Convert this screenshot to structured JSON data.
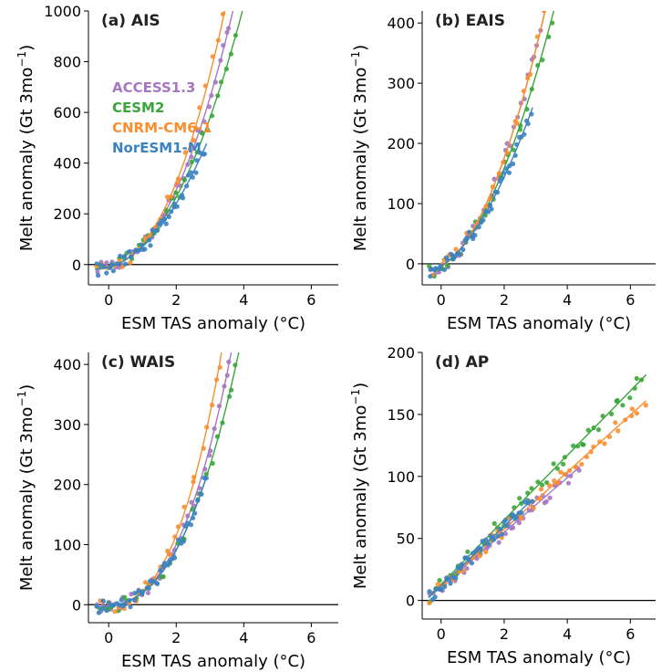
{
  "colors": {
    "ACCESS1.3": "#a577c2",
    "CESM2": "#3aa63a",
    "CNRM-CM6-1": "#f98e2f",
    "NorESM1-M": "#3a82c0"
  },
  "legend": [
    "ACCESS1.3",
    "CESM2",
    "CNRM-CM6-1",
    "NorESM1-M"
  ],
  "chart_data": [
    {
      "type": "scatter",
      "panel_label": "(a) AIS",
      "xlabel": "ESM TAS anomaly (°C)",
      "ylabel": "Melt anomaly (Gt 3mo",
      "ylabel_sup": "−1",
      "ylabel_end": ")",
      "xlim": [
        -0.6,
        6.8
      ],
      "ylim": [
        -80,
        1000
      ],
      "xticks": [
        0,
        2,
        4,
        6
      ],
      "yticks": [
        0,
        200,
        400,
        600,
        800,
        1000
      ],
      "hline": 0,
      "legend_position": "upper-left",
      "series": [
        {
          "name": "ACCESS1.3",
          "coef": [
            38,
            19
          ],
          "exp": 2.3,
          "xmax": 4.4,
          "x": [
            -0.3,
            0.2,
            0.8,
            1.4,
            2.0,
            2.6,
            3.2,
            3.8,
            4.2,
            4.4
          ]
        },
        {
          "name": "CESM2",
          "coef": [
            38,
            19
          ],
          "exp": 2.2,
          "xmax": 6.5,
          "x": [
            -0.3,
            0.5,
            1.2,
            2.0,
            2.8,
            3.5,
            4.2,
            5.0,
            5.8,
            6.5
          ]
        },
        {
          "name": "CNRM-CM6-1",
          "coef": [
            38,
            19
          ],
          "exp": 2.4,
          "xmax": 6.5,
          "x": [
            -0.3,
            0.5,
            1.2,
            2.0,
            2.8,
            3.5,
            4.2,
            5.0,
            5.8,
            6.5
          ]
        },
        {
          "name": "NorESM1-M",
          "coef": [
            38,
            19
          ],
          "exp": 2.1,
          "xmax": 2.9,
          "x": [
            -0.3,
            0.2,
            0.7,
            1.2,
            1.7,
            2.2,
            2.6,
            2.9
          ]
        }
      ]
    },
    {
      "type": "scatter",
      "panel_label": "(b) EAIS",
      "xlabel": "ESM TAS anomaly (°C)",
      "ylabel": "Melt anomaly (Gt 3mo",
      "ylabel_sup": "−1",
      "ylabel_end": ")",
      "xlim": [
        -0.6,
        6.8
      ],
      "ylim": [
        -35,
        420
      ],
      "xticks": [
        0,
        2,
        4,
        6
      ],
      "yticks": [
        0,
        100,
        200,
        300,
        400
      ],
      "hline": 0,
      "series": [
        {
          "name": "ACCESS1.3",
          "coef": [
            30,
            12
          ],
          "exp": 2.0,
          "xmax": 4.4,
          "x": [
            -0.3,
            0.2,
            0.8,
            1.4,
            2.0,
            2.6,
            3.2,
            3.8,
            4.4
          ]
        },
        {
          "name": "CESM2",
          "coef": [
            30,
            12
          ],
          "exp": 1.9,
          "xmax": 6.5,
          "x": [
            -0.3,
            0.5,
            1.2,
            2.0,
            2.8,
            3.5,
            4.2,
            5.0,
            5.8,
            6.5
          ]
        },
        {
          "name": "CNRM-CM6-1",
          "coef": [
            30,
            12
          ],
          "exp": 2.0,
          "xmax": 6.5,
          "x": [
            -0.3,
            0.5,
            1.2,
            2.0,
            2.8,
            3.5,
            4.2,
            5.0,
            5.8,
            6.5
          ]
        },
        {
          "name": "NorESM1-M",
          "coef": [
            30,
            12
          ],
          "exp": 1.8,
          "xmax": 2.9,
          "x": [
            -0.3,
            0.2,
            0.7,
            1.2,
            1.7,
            2.2,
            2.6,
            2.9
          ]
        }
      ]
    },
    {
      "type": "scatter",
      "panel_label": "(c) WAIS",
      "xlabel": "ESM TAS anomaly (°C)",
      "ylabel": "Melt anomaly (Gt 3mo",
      "ylabel_sup": "−1",
      "ylabel_end": ")",
      "xlim": [
        -0.6,
        6.8
      ],
      "ylim": [
        -30,
        420
      ],
      "xticks": [
        0,
        2,
        4,
        6
      ],
      "yticks": [
        0,
        100,
        200,
        300,
        400
      ],
      "hline": 0,
      "series": [
        {
          "name": "ACCESS1.3",
          "coef": [
            8,
            4
          ],
          "exp": 2.8,
          "xmax": 4.4,
          "x": [
            -0.3,
            0.2,
            0.8,
            1.4,
            2.0,
            2.6,
            3.2,
            3.8,
            4.4
          ]
        },
        {
          "name": "CESM2",
          "coef": [
            8,
            4
          ],
          "exp": 2.7,
          "xmax": 6.5,
          "x": [
            -0.3,
            0.5,
            1.2,
            2.0,
            2.8,
            3.5,
            4.2,
            5.0,
            5.8,
            6.5
          ]
        },
        {
          "name": "CNRM-CM6-1",
          "coef": [
            8,
            4
          ],
          "exp": 2.95,
          "xmax": 6.5,
          "x": [
            -0.3,
            0.5,
            1.2,
            2.0,
            2.8,
            3.5,
            4.2,
            5.0,
            5.8,
            6.5
          ]
        },
        {
          "name": "NorESM1-M",
          "coef": [
            8,
            4
          ],
          "exp": 2.7,
          "xmax": 2.9,
          "x": [
            -0.3,
            0.2,
            0.7,
            1.2,
            1.7,
            2.2,
            2.6,
            2.9
          ]
        }
      ]
    },
    {
      "type": "scatter",
      "panel_label": "(d) AP",
      "xlabel": "ESM TAS anomaly (°C)",
      "ylabel": "Melt anomaly (Gt 3mo",
      "ylabel_sup": "−1",
      "ylabel_end": ")",
      "xlim": [
        -0.6,
        6.8
      ],
      "ylim": [
        -15,
        200
      ],
      "xticks": [
        0,
        2,
        4,
        6
      ],
      "yticks": [
        0,
        50,
        100,
        150,
        200
      ],
      "hline": 0,
      "series": [
        {
          "name": "ACCESS1.3",
          "coef": [
            22,
            0
          ],
          "exp": 1.0,
          "xmax": 4.4,
          "x": [
            -0.3,
            0.2,
            0.8,
            1.4,
            2.0,
            2.6,
            3.2,
            3.8,
            4.4
          ]
        },
        {
          "name": "CESM2",
          "coef": [
            26,
            0
          ],
          "exp": 1.0,
          "xmax": 6.5,
          "x": [
            -0.3,
            0.5,
            1.2,
            2.0,
            2.8,
            3.5,
            4.2,
            5.0,
            5.8,
            6.5
          ]
        },
        {
          "name": "CNRM-CM6-1",
          "coef": [
            23,
            0
          ],
          "exp": 1.0,
          "xmax": 6.5,
          "x": [
            -0.3,
            0.5,
            1.2,
            2.0,
            2.8,
            3.5,
            4.2,
            5.0,
            5.8,
            6.5
          ]
        },
        {
          "name": "NorESM1-M",
          "coef": [
            24,
            0
          ],
          "exp": 1.0,
          "xmax": 2.9,
          "x": [
            -0.3,
            0.2,
            0.7,
            1.2,
            1.7,
            2.2,
            2.6,
            2.9
          ]
        }
      ]
    }
  ]
}
